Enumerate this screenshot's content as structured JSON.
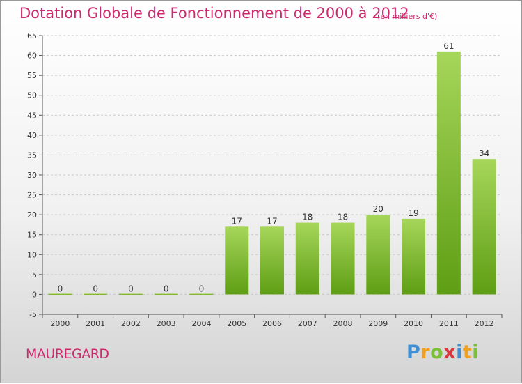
{
  "title": "Dotation Globale de Fonctionnement de 2000 à 2012",
  "subtitle": "(en milliers d'€)",
  "town": "MAUREGARD",
  "brand": {
    "letters": [
      {
        "ch": "P",
        "color": "#3f8fd2"
      },
      {
        "ch": "r",
        "color": "#f0a020"
      },
      {
        "ch": "o",
        "color": "#7cbf3a"
      },
      {
        "ch": "x",
        "color": "#d9363e"
      },
      {
        "ch": "i",
        "color": "#3f8fd2"
      },
      {
        "ch": "t",
        "color": "#f0a020"
      },
      {
        "ch": "i",
        "color": "#7cbf3a"
      }
    ]
  },
  "colors": {
    "title": "#cc2a6e",
    "bar_light": "#a6d65a",
    "bar_dark": "#5e9e14",
    "grid": "#c8c8c8",
    "axis": "#555555"
  },
  "chart_data": {
    "type": "bar",
    "categories": [
      "2000",
      "2001",
      "2002",
      "2003",
      "2004",
      "2005",
      "2006",
      "2007",
      "2008",
      "2009",
      "2010",
      "2011",
      "2012"
    ],
    "values": [
      0,
      0,
      0,
      0,
      0,
      17,
      17,
      18,
      18,
      20,
      19,
      61,
      34
    ],
    "ylim": [
      -5,
      65
    ],
    "yticks": [
      -5,
      0,
      5,
      10,
      15,
      20,
      25,
      30,
      35,
      40,
      45,
      50,
      55,
      60,
      65
    ],
    "grid": "horizontal dashed",
    "legend": "none"
  }
}
